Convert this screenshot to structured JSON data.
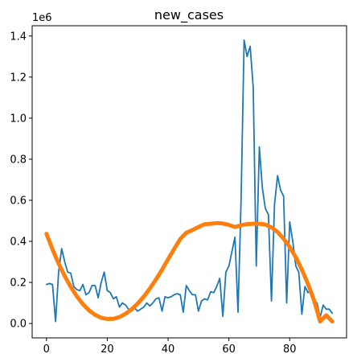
{
  "chart_data": {
    "type": "line",
    "title": "new_cases",
    "xlabel": "",
    "ylabel": "",
    "y_offset_label": "1e6",
    "xlim": [
      -4.7,
      98.7
    ],
    "ylim": [
      -0.07,
      1.45
    ],
    "x_ticks": [
      0,
      20,
      40,
      60,
      80
    ],
    "x_tick_labels": [
      "0",
      "20",
      "40",
      "60",
      "80"
    ],
    "y_ticks": [
      0.0,
      0.2,
      0.4,
      0.6,
      0.8,
      1.0,
      1.2,
      1.4
    ],
    "y_tick_labels": [
      "0.0",
      "0.2",
      "0.4",
      "0.6",
      "0.8",
      "1.0",
      "1.2",
      "1.4"
    ],
    "grid": false,
    "series": [
      {
        "color": "#1f77b4",
        "line_width": 1.8,
        "x": [
          0,
          1,
          2,
          3,
          4,
          5,
          6,
          7,
          8,
          9,
          10,
          11,
          12,
          13,
          14,
          15,
          16,
          17,
          18,
          19,
          20,
          21,
          22,
          23,
          24,
          25,
          26,
          27,
          28,
          29,
          30,
          31,
          32,
          33,
          34,
          35,
          36,
          37,
          38,
          39,
          40,
          41,
          42,
          43,
          44,
          45,
          46,
          47,
          48,
          49,
          50,
          51,
          52,
          53,
          54,
          55,
          56,
          57,
          58,
          59,
          60,
          61,
          62,
          63,
          64,
          65,
          66,
          67,
          68,
          69,
          70,
          71,
          72,
          73,
          74,
          75,
          76,
          77,
          78,
          79,
          80,
          81,
          82,
          83,
          84,
          85,
          86,
          87,
          88,
          89,
          90,
          91,
          92,
          93,
          94
        ],
        "y": [
          0.19,
          0.195,
          0.19,
          0.01,
          0.25,
          0.365,
          0.3,
          0.25,
          0.245,
          0.18,
          0.165,
          0.16,
          0.19,
          0.14,
          0.15,
          0.185,
          0.185,
          0.125,
          0.2,
          0.25,
          0.16,
          0.15,
          0.12,
          0.13,
          0.08,
          0.1,
          0.09,
          0.07,
          0.06,
          0.075,
          0.06,
          0.07,
          0.08,
          0.1,
          0.085,
          0.1,
          0.12,
          0.125,
          0.06,
          0.13,
          0.125,
          0.13,
          0.14,
          0.145,
          0.14,
          0.055,
          0.185,
          0.16,
          0.14,
          0.14,
          0.06,
          0.11,
          0.12,
          0.115,
          0.155,
          0.15,
          0.18,
          0.22,
          0.035,
          0.25,
          0.28,
          0.35,
          0.42,
          0.055,
          0.6,
          1.38,
          1.3,
          1.35,
          1.15,
          0.28,
          0.86,
          0.66,
          0.56,
          0.53,
          0.11,
          0.58,
          0.72,
          0.65,
          0.62,
          0.1,
          0.495,
          0.4,
          0.28,
          0.25,
          0.045,
          0.18,
          0.15,
          0.16,
          0.11,
          0.1,
          0.03,
          0.09,
          0.07,
          0.07,
          0.05
        ]
      },
      {
        "color": "#ff7f0e",
        "line_width": 5,
        "x": [
          0,
          2,
          4,
          6,
          8,
          10,
          12,
          14,
          16,
          18,
          20,
          22,
          24,
          26,
          28,
          30,
          32,
          34,
          36,
          38,
          40,
          42,
          44,
          46,
          48,
          50,
          52,
          54,
          56,
          58,
          60,
          62,
          64,
          66,
          68,
          70,
          72,
          74,
          76,
          78,
          80,
          82,
          84,
          86,
          88,
          90,
          92,
          94
        ],
        "y": [
          0.437,
          0.361,
          0.292,
          0.231,
          0.178,
          0.132,
          0.094,
          0.064,
          0.042,
          0.028,
          0.022,
          0.023,
          0.031,
          0.047,
          0.069,
          0.097,
          0.131,
          0.17,
          0.214,
          0.262,
          0.313,
          0.363,
          0.412,
          0.442,
          0.455,
          0.47,
          0.483,
          0.486,
          0.489,
          0.487,
          0.48,
          0.47,
          0.478,
          0.484,
          0.486,
          0.486,
          0.482,
          0.468,
          0.445,
          0.413,
          0.372,
          0.322,
          0.262,
          0.193,
          0.113,
          0.01,
          0.04,
          0.01
        ]
      }
    ]
  }
}
